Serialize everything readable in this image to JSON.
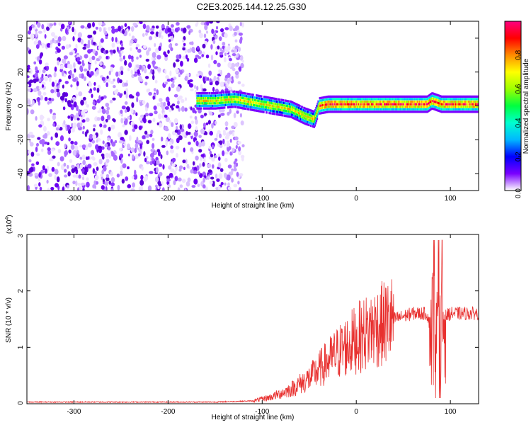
{
  "title": "C2E3.2025.144.12.25.G30",
  "chart_data": [
    {
      "type": "heatmap",
      "title": "C2E3.2025.144.12.25.G30",
      "xlabel": "Height of straight line (km)",
      "ylabel": "Frequency (Hz)",
      "xlim": [
        -350,
        130
      ],
      "ylim": [
        -50,
        50
      ],
      "xticks": [
        -300,
        -200,
        -100,
        0,
        100
      ],
      "yticks": [
        -40,
        -20,
        0,
        20,
        40
      ],
      "colorbar": {
        "label": "Normalized spectral amplitude",
        "range": [
          0,
          1
        ],
        "ticks": [
          "0.0",
          "0.2",
          "0.4",
          "0.6",
          "0.8"
        ],
        "colors": [
          "#ffffff",
          "#7a00ff",
          "#0000ff",
          "#00b7ff",
          "#00ffd0",
          "#00ff40",
          "#9dff00",
          "#ffff00",
          "#ff8c00",
          "#ff0000",
          "#ff0080"
        ]
      },
      "noise_region_x": [
        -350,
        -120
      ],
      "ridge": {
        "x": [
          -170,
          -150,
          -130,
          -110,
          -90,
          -70,
          -55,
          -45,
          -40,
          -30,
          -20,
          0,
          20,
          50,
          75,
          80,
          90,
          100,
          130
        ],
        "y": [
          3,
          3,
          4,
          2,
          0,
          -2,
          -6,
          -8,
          0,
          1,
          1,
          1,
          1,
          1,
          1,
          3,
          1,
          1,
          1
        ]
      }
    },
    {
      "type": "line",
      "xlabel": "Height of straight line (km)",
      "ylabel": "SNR (10 * v/v)",
      "y_multiplier": "(x10",
      "y_multiplier_exp": "4",
      "y_multiplier_close": ")",
      "xlim": [
        -350,
        130
      ],
      "ylim": [
        0,
        3
      ],
      "xticks": [
        -300,
        -200,
        -100,
        0,
        100
      ],
      "yticks": [
        0,
        1,
        2,
        3
      ],
      "series": [
        {
          "color": "#e8302f",
          "envelope": {
            "x": [
              -350,
              -150,
              -110,
              -90,
              -70,
              -50,
              -40,
              -30,
              -20,
              0,
              20,
              40,
              60,
              75,
              80,
              85,
              90,
              95,
              100,
              130
            ],
            "y": [
              0.03,
              0.03,
              0.05,
              0.12,
              0.25,
              0.45,
              0.6,
              0.75,
              0.9,
              1.15,
              1.35,
              1.5,
              1.6,
              1.6,
              1.3,
              1.8,
              1.4,
              1.55,
              1.6,
              1.6
            ]
          }
        }
      ]
    }
  ]
}
